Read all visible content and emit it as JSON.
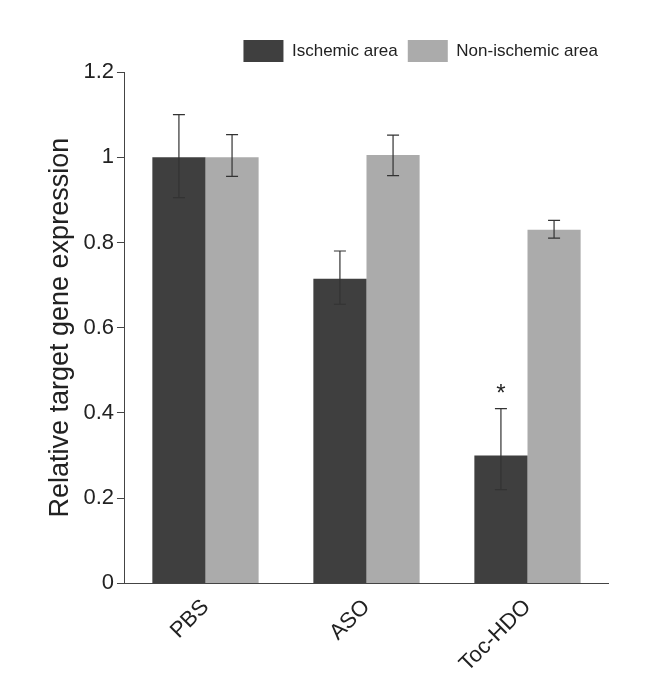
{
  "chart_data": {
    "type": "bar",
    "y_label": "Relative target gene expression",
    "categories": [
      "PBS",
      "ASO",
      "Toc-HDO"
    ],
    "series": [
      {
        "name": "Ischemic area",
        "color": "#3f3f3f",
        "values": [
          1.0,
          0.715,
          0.3
        ],
        "error_minus": [
          0.095,
          0.06,
          0.08
        ],
        "error_plus": [
          0.1,
          0.065,
          0.11
        ]
      },
      {
        "name": "Non-ischemic area",
        "color": "#ababab",
        "values": [
          1.0,
          1.005,
          0.83
        ],
        "error_minus": [
          0.045,
          0.048,
          0.02
        ],
        "error_plus": [
          0.053,
          0.047,
          0.022
        ]
      }
    ],
    "annotations": [
      {
        "text": "*",
        "category": "Toc-HDO",
        "series": "Ischemic area"
      }
    ],
    "ylim": [
      0,
      1.2
    ],
    "yticks": [
      0,
      0.2,
      0.4,
      0.6,
      0.8,
      1,
      1.2
    ],
    "grid": false,
    "legend": "top-right"
  }
}
